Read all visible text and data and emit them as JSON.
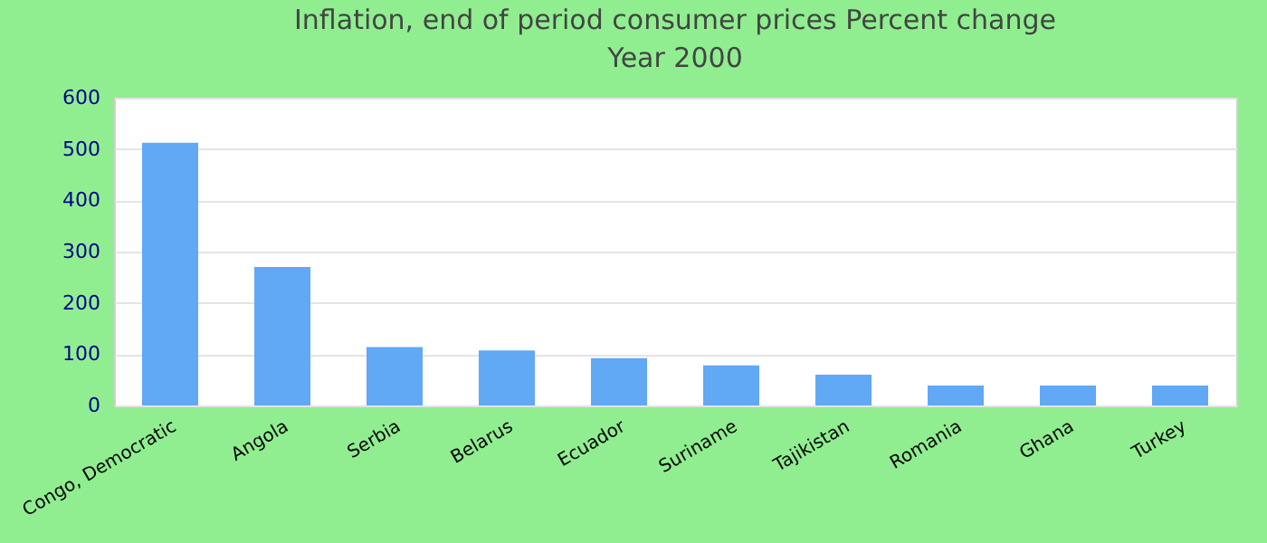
{
  "chart_data": {
    "type": "bar",
    "title": "Inflation, end of period consumer prices  Percent change",
    "subtitle": "Year 2000",
    "categories": [
      "Congo, Democratic",
      "Angola",
      "Serbia",
      "Belarus",
      "Ecuador",
      "Suriname",
      "Tajikistan",
      "Romania",
      "Ghana",
      "Turkey"
    ],
    "values": [
      512,
      270,
      114,
      107,
      92,
      78,
      60,
      39,
      39,
      39
    ],
    "color": "#61a8f5",
    "ylim": [
      0,
      600
    ],
    "yticks": [
      0,
      100,
      200,
      300,
      400,
      500,
      600
    ],
    "grid": "y"
  }
}
